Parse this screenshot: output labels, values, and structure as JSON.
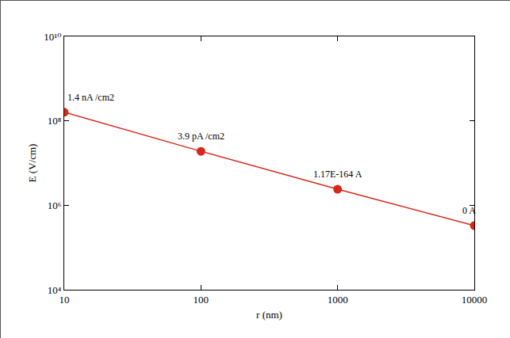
{
  "chart_data": {
    "type": "line",
    "x_label": "r (nm)",
    "y_label": "E (V/cm)",
    "x": [
      10,
      100,
      1000,
      10000
    ],
    "values": [
      160000000,
      19000000,
      2400000,
      330000
    ],
    "annotations": [
      "1.4 nA /cm2",
      "3.9 pA /cm2",
      "1.17E-164 A",
      "0 A"
    ],
    "color": "#d42a1a",
    "marker": "circle",
    "line_style": "solid",
    "log": true,
    "grid": false,
    "xlim": [
      10,
      10000
    ],
    "ylim": [
      10000,
      10000000000
    ],
    "xticks": [
      10,
      100,
      1000,
      10000
    ],
    "yticks": [
      {
        "value": 10000,
        "label": "10⁴"
      },
      {
        "value": 1000000,
        "label": "10⁶"
      },
      {
        "value": 100000000,
        "label": "10⁸"
      },
      {
        "value": 10000000000,
        "label": "10¹⁰"
      }
    ]
  }
}
